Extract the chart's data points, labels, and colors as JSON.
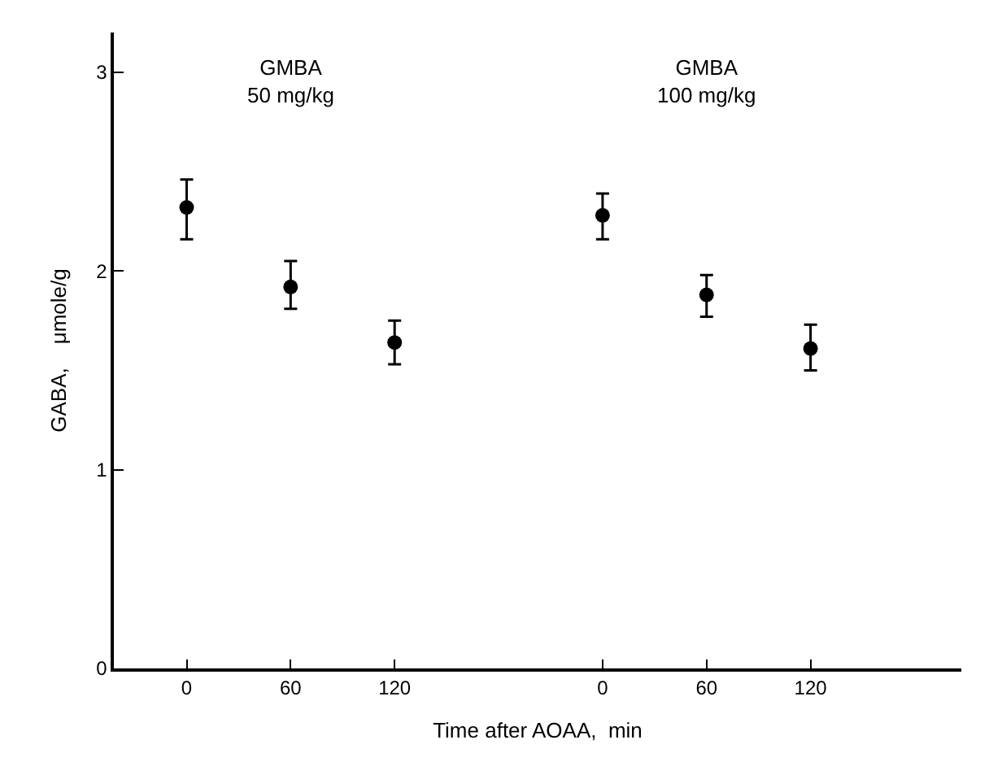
{
  "chart_data": {
    "type": "scatter",
    "xlabel": "Time after AOAA,  min",
    "ylabel": "GABA,    μmole/g",
    "annotations": [
      "GMBA\n50 mg/kg",
      "GMBA\n100 mg/kg"
    ],
    "categories": [
      "0",
      "60",
      "120",
      null,
      "0",
      "60",
      "120"
    ],
    "series": [
      {
        "color": "#000000",
        "values": [
          2.32,
          1.92,
          1.64,
          null,
          2.28,
          1.88,
          1.61
        ],
        "errors": [
          [
            2.16,
            2.46
          ],
          [
            1.81,
            2.05
          ],
          [
            1.53,
            1.75
          ],
          null,
          [
            2.16,
            2.39
          ],
          [
            1.77,
            1.98
          ],
          [
            1.5,
            1.73
          ]
        ]
      }
    ],
    "ylim": [
      0,
      3.2
    ],
    "yticks": [
      0,
      1,
      2,
      3
    ],
    "marker": "circle"
  }
}
